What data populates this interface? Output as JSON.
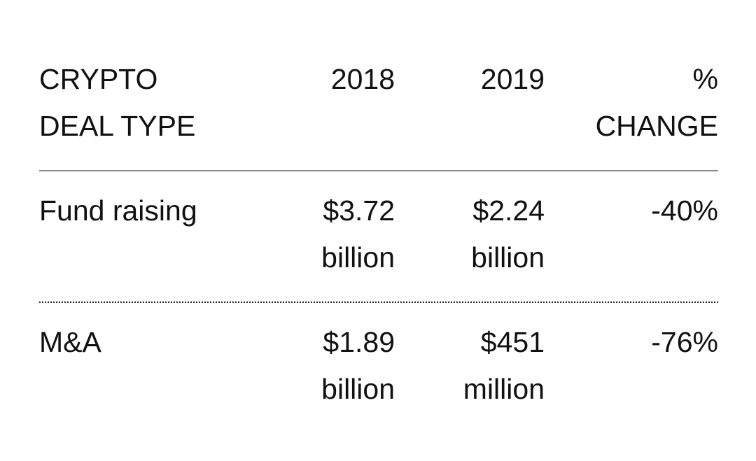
{
  "chart_data": {
    "type": "table",
    "columns": [
      {
        "lines": [
          "CRYPTO",
          "DEAL TYPE"
        ]
      },
      {
        "lines": [
          "2018"
        ]
      },
      {
        "lines": [
          "2019"
        ]
      },
      {
        "lines": [
          "%",
          "CHANGE"
        ]
      }
    ],
    "rows": [
      {
        "deal_type": "Fund raising",
        "y2018": [
          "$3.72",
          "billion"
        ],
        "y2019": [
          "$2.24",
          "billion"
        ],
        "change": "-40%"
      },
      {
        "deal_type": "M&A",
        "y2018": [
          "$1.89",
          "billion"
        ],
        "y2019": [
          "$451",
          "million"
        ],
        "change": "-76%"
      }
    ]
  }
}
